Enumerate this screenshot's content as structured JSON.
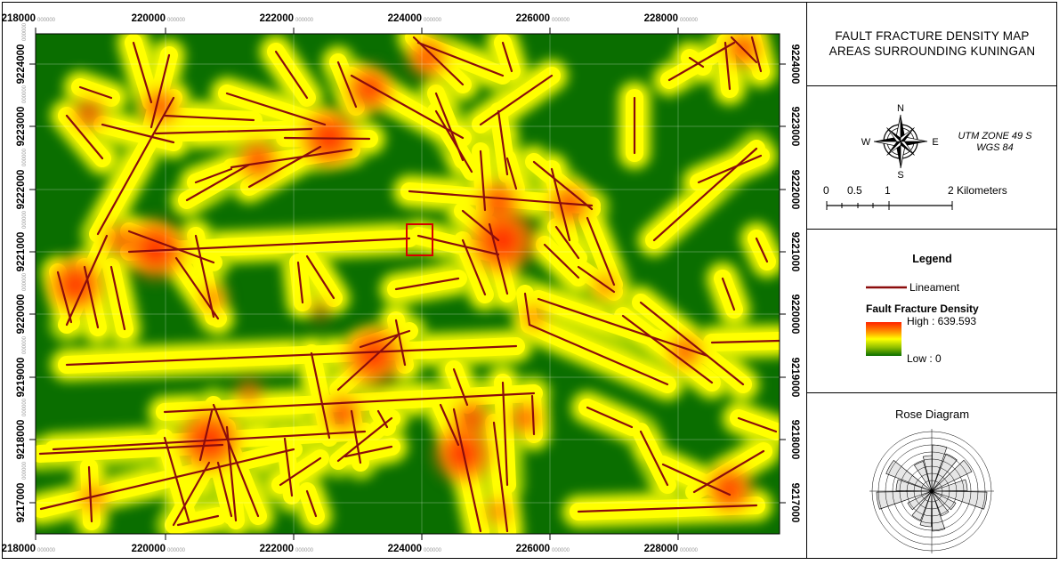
{
  "map": {
    "x_ticks": [
      "218000",
      "220000",
      "222000",
      "224000",
      "226000",
      "228000"
    ],
    "y_ticks": [
      "9224000",
      "9223000",
      "9222000",
      "9221000",
      "9220000",
      "9219000",
      "9218000",
      "9217000"
    ],
    "tick_suffix": "000000",
    "colors": {
      "background": "#0a6e00",
      "lineament": "#8b0c0c",
      "halo": "#ffff00",
      "hot": "#ff3300",
      "marker": "#d60000"
    }
  },
  "title": {
    "line1": "FAULT FRACTURE DENSITY MAP",
    "line2": "AREAS SURROUNDING KUNINGAN"
  },
  "north_arrow": {
    "n": "N",
    "s": "S",
    "e": "E",
    "w": "W",
    "icon": "compass-rose-icon"
  },
  "projection": {
    "line1": "UTM ZONE 49 S",
    "line2": "WGS 84"
  },
  "scalebar": {
    "labels": [
      "0",
      "0.5",
      "1",
      "2 Kilometers"
    ]
  },
  "legend": {
    "title": "Legend",
    "lineament": "Lineament",
    "density_title": "Fault Fracture Density",
    "high": "High : 639.593",
    "low": "Low : 0"
  },
  "rose": {
    "title": "Rose Diagram"
  }
}
